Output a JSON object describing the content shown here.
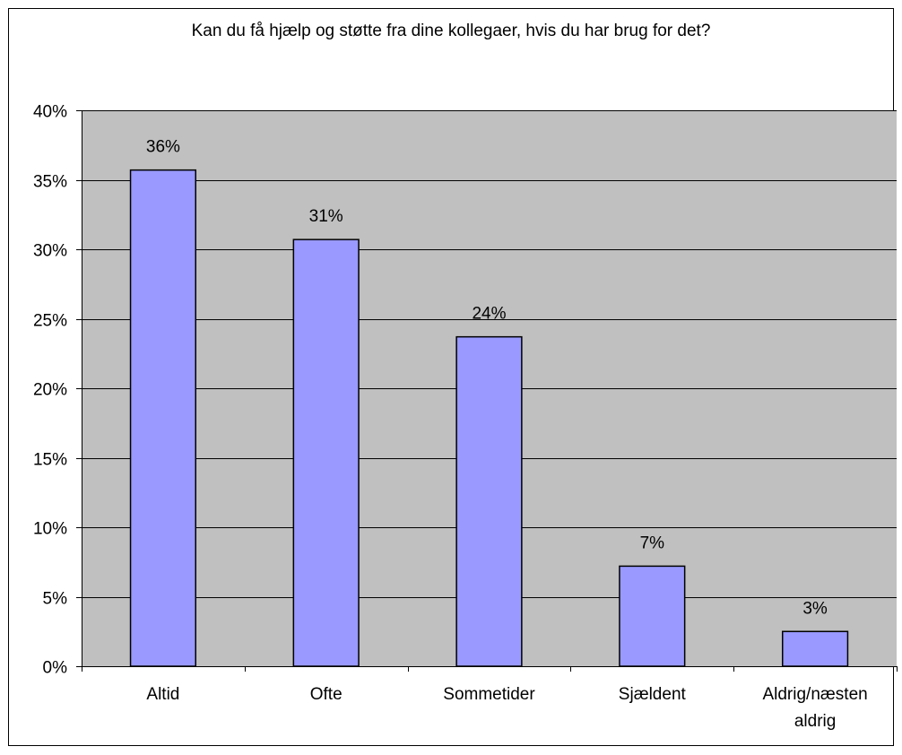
{
  "chart_data": {
    "type": "bar",
    "title": "Kan du få hjælp og støtte fra dine kollegaer, hvis du har brug for det?",
    "categories": [
      "Altid",
      "Ofte",
      "Sommetider",
      "Sjældent",
      "Aldrig/næsten aldrig"
    ],
    "category_label_lines": [
      [
        "Altid"
      ],
      [
        "Ofte"
      ],
      [
        "Sommetider"
      ],
      [
        "Sjældent"
      ],
      [
        "Aldrig/næsten",
        "aldrig"
      ]
    ],
    "values": [
      35.7,
      30.7,
      23.7,
      7.2,
      2.5
    ],
    "data_labels": [
      "36%",
      "31%",
      "24%",
      "7%",
      "3%"
    ],
    "ylim": [
      0,
      40
    ],
    "yticks": [
      0,
      5,
      10,
      15,
      20,
      25,
      30,
      35,
      40
    ],
    "ytick_labels": [
      "0%",
      "5%",
      "10%",
      "15%",
      "20%",
      "25%",
      "30%",
      "35%",
      "40%"
    ],
    "xlabel": "",
    "ylabel": "",
    "grid": true,
    "legend": "none",
    "colors": {
      "plot_background": "#c0c0c0",
      "bar_fill": "#9999ff",
      "bar_stroke": "#000000",
      "gridline": "#000000"
    }
  }
}
